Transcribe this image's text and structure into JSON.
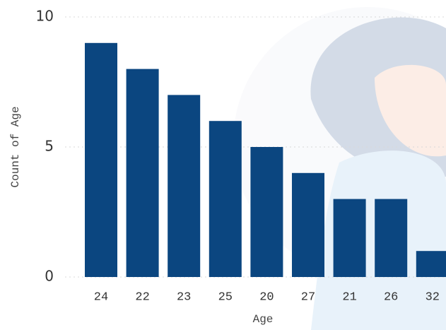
{
  "chart_data": {
    "type": "bar",
    "categories": [
      "24",
      "22",
      "23",
      "25",
      "20",
      "27",
      "21",
      "26",
      "32"
    ],
    "values": [
      9,
      8,
      7,
      6,
      5,
      4,
      3,
      3,
      1
    ],
    "color": "#0b4680",
    "x_label": "Age",
    "y_label": "Count of Age",
    "ylim": [
      0,
      10
    ],
    "yticks": [
      0,
      5,
      10
    ],
    "grid": true
  }
}
